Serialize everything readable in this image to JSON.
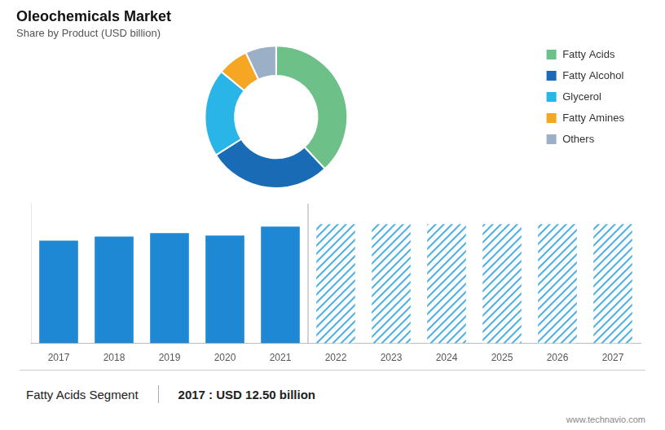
{
  "chart_data": [
    {
      "type": "doughnut",
      "title": "Oleochemicals Market",
      "subtitle": "Share by Product (USD billion)",
      "categories": [
        "Fatty Acids",
        "Fatty Alcohol",
        "Glycerol",
        "Fatty Amines",
        "Others"
      ],
      "values": [
        38,
        28,
        20,
        7,
        7
      ],
      "colors": [
        "#6DC087",
        "#1A6BB5",
        "#29B5E8",
        "#F5A623",
        "#9BAFC7"
      ],
      "legend": "right"
    },
    {
      "type": "bar",
      "categories": [
        "2017",
        "2018",
        "2019",
        "2020",
        "2021",
        "2022",
        "2023",
        "2024",
        "2025",
        "2026",
        "2027"
      ],
      "series": [
        {
          "color": "#1E88D4",
          "values": [
            12.5,
            13.0,
            13.4,
            13.1,
            14.2,
            0,
            0,
            0,
            0,
            0,
            0
          ]
        },
        {
          "color": "#4EB0E8",
          "values": [
            0,
            0,
            0,
            0,
            0,
            14.5,
            14.5,
            14.5,
            14.5,
            14.5,
            14.5
          ]
        }
      ],
      "ylim": [
        0,
        17
      ],
      "yticks": [],
      "grid": false,
      "tick_labels": "x",
      "annotations": [
        "Fatty Acids Segment",
        "2017 : USD 12.50 billion",
        "www.technavio.com"
      ]
    }
  ]
}
